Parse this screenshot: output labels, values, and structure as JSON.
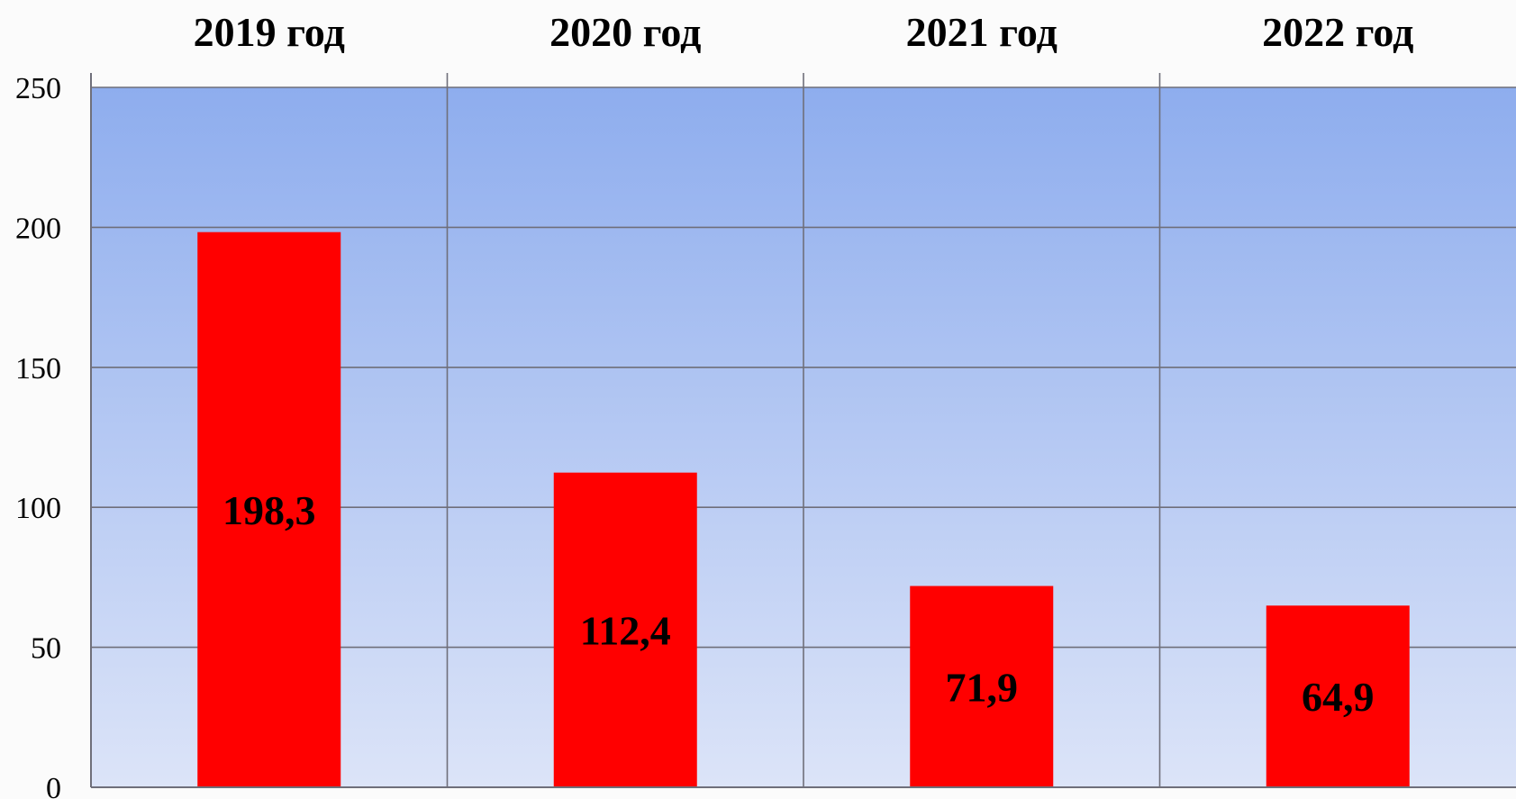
{
  "chart_data": {
    "type": "bar",
    "categories": [
      "2019 год",
      "2020 год",
      "2021 год",
      "2022 год"
    ],
    "values": [
      198.3,
      112.4,
      71.9,
      64.9
    ],
    "data_labels": [
      "198,3",
      "112,4",
      "71,9",
      "64,9"
    ],
    "title": "",
    "xlabel": "",
    "ylabel": "",
    "ylim": [
      0,
      250
    ],
    "yticks": [
      0,
      50,
      100,
      150,
      200,
      250
    ],
    "grid": true,
    "category_axis_position": "top",
    "colors": {
      "bar": "#ff0000",
      "plot_background_top": "#8eadee",
      "plot_background_bottom": "#dce4f8",
      "grid": "#6f6f7a"
    }
  }
}
